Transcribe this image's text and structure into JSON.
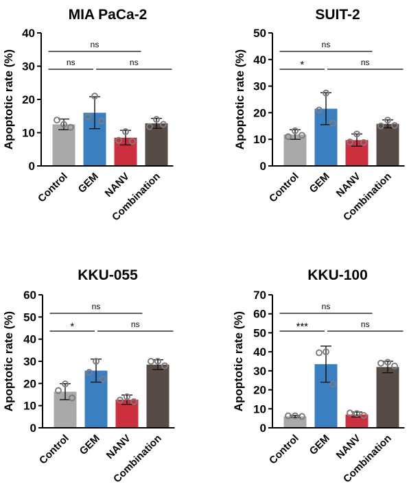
{
  "chart_data": [
    {
      "type": "bar",
      "title": "MIA PaCa-2",
      "ylabel": "Apoptotic rate (%)",
      "ylim": [
        0,
        40
      ],
      "yticks": [
        0,
        10,
        20,
        30,
        40
      ],
      "categories": [
        "Control",
        "GEM",
        "NANV",
        "Combination"
      ],
      "values": [
        12.5,
        16,
        8.5,
        12.8
      ],
      "errors": [
        1.6,
        4.8,
        2.2,
        1.5
      ],
      "points": [
        [
          12.5,
          13.8,
          11.6
        ],
        [
          21.0,
          14.8,
          13.5
        ],
        [
          10.3,
          7.7,
          7.4
        ],
        [
          14.0,
          11.8,
          12.5
        ]
      ],
      "colors": [
        "#a9a9a9",
        "#3a7fc0",
        "#cc2f3e",
        "#574b47"
      ],
      "comparisons": [
        {
          "from": 0,
          "to": 2,
          "label": "ns",
          "level": 0
        },
        {
          "from": 0,
          "to": 1,
          "label": "ns",
          "level": 1
        },
        {
          "from": 1,
          "to": 3,
          "label": "ns",
          "level": 1
        }
      ]
    },
    {
      "type": "bar",
      "title": "SUIT-2",
      "ylabel": "Apoptotic rate (%)",
      "ylim": [
        0,
        50
      ],
      "yticks": [
        0,
        10,
        20,
        30,
        40,
        50
      ],
      "categories": [
        "Control",
        "GEM",
        "NANV",
        "Combination"
      ],
      "values": [
        11.8,
        21.5,
        9.7,
        15.8
      ],
      "errors": [
        1.8,
        6.0,
        2.3,
        1.5
      ],
      "points": [
        [
          13.2,
          11.0,
          11.5
        ],
        [
          27.4,
          21.0,
          16.0
        ],
        [
          12.0,
          9.0,
          8.8
        ],
        [
          17.2,
          15.0,
          15.2
        ]
      ],
      "colors": [
        "#a9a9a9",
        "#3a7fc0",
        "#cc2f3e",
        "#574b47"
      ],
      "comparisons": [
        {
          "from": 0,
          "to": 2,
          "label": "ns",
          "level": 0
        },
        {
          "from": 0,
          "to": 1,
          "label": "*",
          "level": 1
        },
        {
          "from": 1,
          "to": 3,
          "label": "ns",
          "level": 1
        }
      ]
    },
    {
      "type": "bar",
      "title": "KKU-055",
      "ylabel": "Apoptotic rate (%)",
      "ylim": [
        0,
        60
      ],
      "yticks": [
        0,
        10,
        20,
        30,
        40,
        50,
        60
      ],
      "categories": [
        "Control",
        "GEM",
        "NANV",
        "Combination"
      ],
      "values": [
        16.3,
        25.8,
        12.7,
        28.5
      ],
      "errors": [
        3.6,
        5.2,
        2.1,
        2.2
      ],
      "points": [
        [
          19.8,
          16.8,
          13.5
        ],
        [
          30.0,
          25.0,
          22.0
        ],
        [
          14.0,
          12.5,
          11.8
        ],
        [
          30.0,
          30.0,
          28.0
        ]
      ],
      "colors": [
        "#a9a9a9",
        "#3a7fc0",
        "#cc2f3e",
        "#574b47"
      ],
      "comparisons": [
        {
          "from": 0,
          "to": 2,
          "label": "ns",
          "level": 0
        },
        {
          "from": 0,
          "to": 1,
          "label": "*",
          "level": 1
        },
        {
          "from": 1,
          "to": 3,
          "label": "ns",
          "level": 1
        }
      ]
    },
    {
      "type": "bar",
      "title": "KKU-100",
      "ylabel": "Apoptotic rate (%)",
      "ylim": [
        0,
        70
      ],
      "yticks": [
        0,
        10,
        20,
        30,
        40,
        50,
        60,
        70
      ],
      "categories": [
        "Control",
        "GEM",
        "NANV",
        "Combination"
      ],
      "values": [
        6.0,
        33.5,
        7.0,
        32.0
      ],
      "errors": [
        0.5,
        9.5,
        1.3,
        3.0
      ],
      "points": [
        [
          6.3,
          6.3,
          6.0
        ],
        [
          40.0,
          39.5,
          23.0
        ],
        [
          7.5,
          7.8,
          6.5
        ],
        [
          34.5,
          34.0,
          32.5
        ]
      ],
      "colors": [
        "#a9a9a9",
        "#3a7fc0",
        "#cc2f3e",
        "#574b47"
      ],
      "comparisons": [
        {
          "from": 0,
          "to": 2,
          "label": "ns",
          "level": 0
        },
        {
          "from": 0,
          "to": 1,
          "label": "***",
          "level": 1
        },
        {
          "from": 1,
          "to": 3,
          "label": "ns",
          "level": 1
        }
      ]
    }
  ]
}
